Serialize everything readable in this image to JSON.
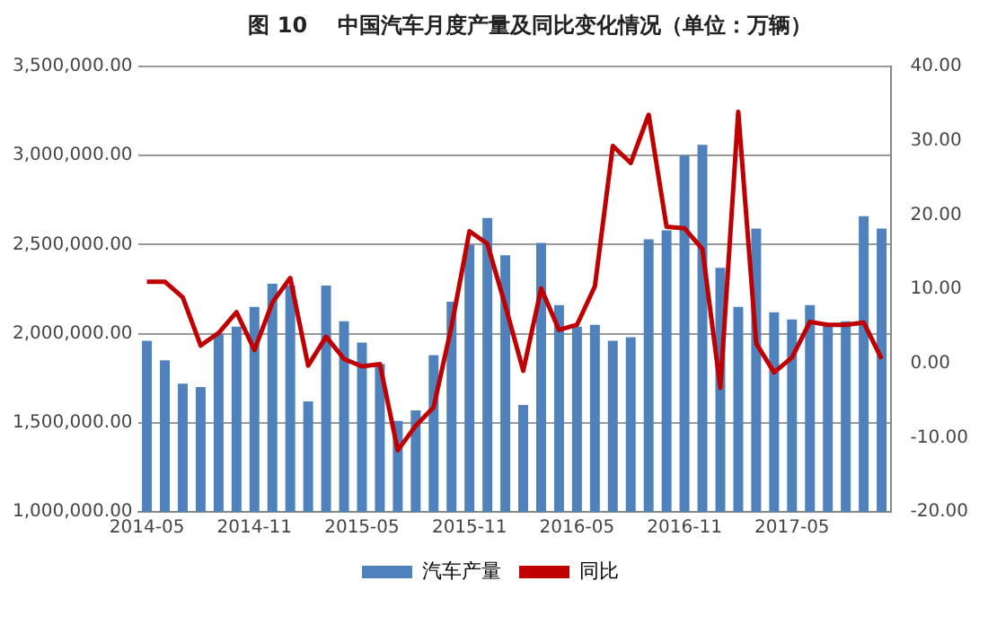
{
  "chart_data": {
    "type": "bar",
    "title": "图 10    中国汽车月度产量及同比变化情况（单位：万辆）",
    "categories": [
      "2014-05",
      null,
      null,
      null,
      null,
      null,
      "2014-11",
      null,
      null,
      null,
      null,
      null,
      "2015-05",
      null,
      null,
      null,
      null,
      null,
      "2015-11",
      null,
      null,
      null,
      null,
      null,
      "2016-05",
      null,
      null,
      null,
      null,
      null,
      "2016-11",
      null,
      null,
      null,
      null,
      null,
      "2017-05",
      null,
      null,
      null,
      null,
      null
    ],
    "series": [
      {
        "name": "汽车产量",
        "color": "#4f81bd",
        "values": [
          1960000,
          1850000,
          1720000,
          1700000,
          2000000,
          2040000,
          2150000,
          2280000,
          2270000,
          1620000,
          2270000,
          2070000,
          1950000,
          1830000,
          1510000,
          1570000,
          1880000,
          2180000,
          2500000,
          2650000,
          2440000,
          1600000,
          2510000,
          2160000,
          2040000,
          2050000,
          1960000,
          1980000,
          2530000,
          2580000,
          3000000,
          3060000,
          2370000,
          2150000,
          2590000,
          2120000,
          2080000,
          2160000,
          2050000,
          2070000,
          2660000,
          2590000
        ]
      },
      {
        "name": "同比",
        "type": "line",
        "axis": "y2",
        "color": "#c00000",
        "values": [
          11.0,
          11.0,
          8.9,
          2.4,
          4.1,
          6.9,
          1.8,
          8.2,
          11.5,
          -0.3,
          3.6,
          0.6,
          -0.4,
          -0.1,
          -11.7,
          -8.4,
          -5.9,
          5.0,
          17.8,
          16.1,
          7.8,
          -1.0,
          10.1,
          4.5,
          5.2,
          10.4,
          29.3,
          27.0,
          33.5,
          18.4,
          18.2,
          15.4,
          -3.3,
          33.9,
          2.7,
          -1.2,
          0.8,
          5.6,
          5.2,
          5.2,
          5.5,
          0.6
        ]
      }
    ],
    "ylim": [
      1000000,
      3500000
    ],
    "yticks": [
      {
        "value": 1000000,
        "label": "1,000,000.00"
      },
      {
        "value": 1500000,
        "label": "1,500,000.00"
      },
      {
        "value": 2000000,
        "label": "2,000,000.00"
      },
      {
        "value": 2500000,
        "label": "2,500,000.00"
      },
      {
        "value": 3000000,
        "label": "3,000,000.00"
      },
      {
        "value": 3500000,
        "label": "3,500,000.00"
      }
    ],
    "y2lim": [
      -20,
      40
    ],
    "y2ticks": [
      {
        "value": -20,
        "label": "-20.00"
      },
      {
        "value": -10,
        "label": "-10.00"
      },
      {
        "value": 0,
        "label": "0.00"
      },
      {
        "value": 10,
        "label": "10.00"
      },
      {
        "value": 20,
        "label": "20.00"
      },
      {
        "value": 30,
        "label": "30.00"
      },
      {
        "value": 40,
        "label": "40.00"
      }
    ],
    "grid": "y",
    "legend": "bottom",
    "marker": "none",
    "line_style": "solid"
  }
}
